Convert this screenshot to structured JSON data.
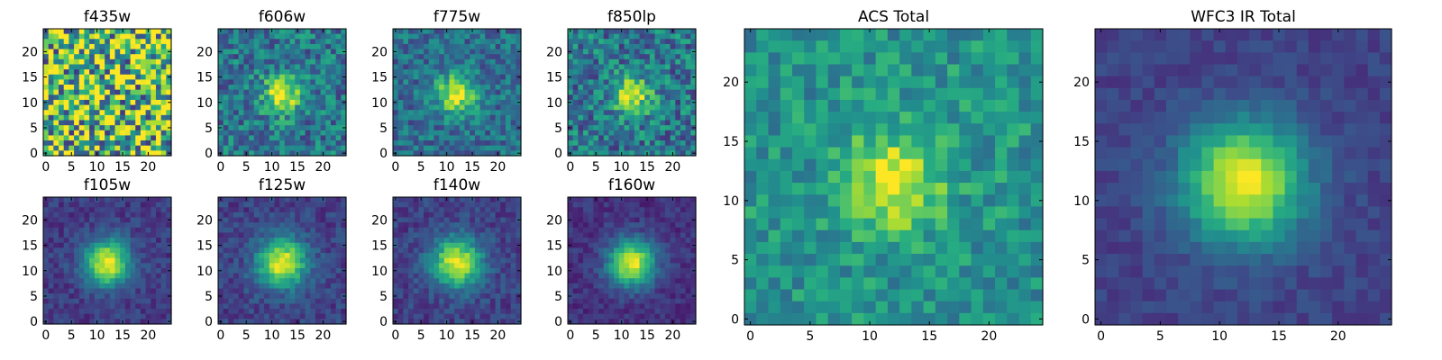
{
  "chart_data": [
    {
      "type": "heatmap",
      "title": "f435w",
      "x_ticks": [
        "0",
        "5",
        "10",
        "15",
        "20"
      ],
      "y_ticks": [
        "0",
        "5",
        "10",
        "15",
        "20"
      ],
      "grid_size": 25,
      "noise": 0.55,
      "peak": 0.0,
      "background": 0.72,
      "sigma": 3.0,
      "colormap": "viridis"
    },
    {
      "type": "heatmap",
      "title": "f606w",
      "x_ticks": [
        "0",
        "5",
        "10",
        "15",
        "20"
      ],
      "y_ticks": [
        "0",
        "5",
        "10",
        "15",
        "20"
      ],
      "grid_size": 25,
      "noise": 0.22,
      "peak": 0.55,
      "background": 0.4,
      "sigma": 2.6,
      "colormap": "viridis"
    },
    {
      "type": "heatmap",
      "title": "f775w",
      "x_ticks": [
        "0",
        "5",
        "10",
        "15",
        "20"
      ],
      "y_ticks": [
        "0",
        "5",
        "10",
        "15",
        "20"
      ],
      "grid_size": 25,
      "noise": 0.18,
      "peak": 0.6,
      "background": 0.36,
      "sigma": 2.8,
      "colormap": "viridis"
    },
    {
      "type": "heatmap",
      "title": "f850lp",
      "x_ticks": [
        "0",
        "5",
        "10",
        "15",
        "20"
      ],
      "y_ticks": [
        "0",
        "5",
        "10",
        "15",
        "20"
      ],
      "grid_size": 25,
      "noise": 0.24,
      "peak": 0.55,
      "background": 0.4,
      "sigma": 2.6,
      "colormap": "viridis"
    },
    {
      "type": "heatmap",
      "title": "f105w",
      "x_ticks": [
        "0",
        "5",
        "10",
        "15",
        "20"
      ],
      "y_ticks": [
        "0",
        "5",
        "10",
        "15",
        "20"
      ],
      "grid_size": 25,
      "noise": 0.09,
      "peak": 0.8,
      "background": 0.18,
      "sigma": 3.2,
      "colormap": "viridis"
    },
    {
      "type": "heatmap",
      "title": "f125w",
      "x_ticks": [
        "0",
        "5",
        "10",
        "15",
        "20"
      ],
      "y_ticks": [
        "0",
        "5",
        "10",
        "15",
        "20"
      ],
      "grid_size": 25,
      "noise": 0.1,
      "peak": 0.78,
      "background": 0.2,
      "sigma": 3.4,
      "colormap": "viridis"
    },
    {
      "type": "heatmap",
      "title": "f140w",
      "x_ticks": [
        "0",
        "5",
        "10",
        "15",
        "20"
      ],
      "y_ticks": [
        "0",
        "5",
        "10",
        "15",
        "20"
      ],
      "grid_size": 25,
      "noise": 0.1,
      "peak": 0.78,
      "background": 0.2,
      "sigma": 3.4,
      "colormap": "viridis"
    },
    {
      "type": "heatmap",
      "title": "f160w",
      "x_ticks": [
        "0",
        "5",
        "10",
        "15",
        "20"
      ],
      "y_ticks": [
        "0",
        "5",
        "10",
        "15",
        "20"
      ],
      "grid_size": 25,
      "noise": 0.08,
      "peak": 0.82,
      "background": 0.15,
      "sigma": 3.2,
      "colormap": "viridis"
    },
    {
      "type": "heatmap",
      "title": "ACS Total",
      "x_ticks": [
        "0",
        "5",
        "10",
        "15",
        "20"
      ],
      "y_ticks": [
        "0",
        "5",
        "10",
        "15",
        "20"
      ],
      "grid_size": 25,
      "noise": 0.16,
      "peak": 0.48,
      "background": 0.52,
      "sigma": 2.8,
      "colormap": "viridis"
    },
    {
      "type": "heatmap",
      "title": "WFC3 IR Total",
      "x_ticks": [
        "0",
        "5",
        "10",
        "15",
        "20"
      ],
      "y_ticks": [
        "0",
        "5",
        "10",
        "15",
        "20"
      ],
      "grid_size": 25,
      "noise": 0.06,
      "peak": 0.8,
      "background": 0.2,
      "sigma": 3.6,
      "colormap": "viridis"
    }
  ]
}
